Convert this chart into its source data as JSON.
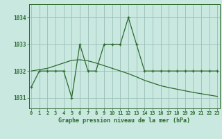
{
  "x": [
    0,
    1,
    2,
    3,
    4,
    5,
    6,
    7,
    8,
    9,
    10,
    11,
    12,
    13,
    14,
    15,
    16,
    17,
    18,
    19,
    20,
    21,
    22,
    23
  ],
  "y_main": [
    1031.4,
    1032.0,
    1032.0,
    1032.0,
    1032.0,
    1031.0,
    1033.0,
    1032.0,
    1032.0,
    1033.0,
    1033.0,
    1033.0,
    1034.0,
    1033.0,
    1032.0,
    1032.0,
    1032.0,
    1032.0,
    1032.0,
    1032.0,
    1032.0,
    1032.0,
    1032.0,
    1032.0
  ],
  "y_trend": [
    1032.0,
    1032.05,
    1032.1,
    1032.2,
    1032.3,
    1032.4,
    1032.42,
    1032.38,
    1032.3,
    1032.2,
    1032.1,
    1032.0,
    1031.9,
    1031.78,
    1031.65,
    1031.55,
    1031.45,
    1031.38,
    1031.32,
    1031.26,
    1031.2,
    1031.15,
    1031.1,
    1031.05
  ],
  "line_color": "#2d6a2d",
  "bg_color": "#c8e8e0",
  "grid_color": "#9abfb8",
  "xlabel_ticks": [
    "0",
    "1",
    "2",
    "3",
    "4",
    "5",
    "6",
    "7",
    "8",
    "9",
    "10",
    "11",
    "12",
    "13",
    "14",
    "15",
    "16",
    "17",
    "18",
    "19",
    "20",
    "21",
    "22",
    "23"
  ],
  "yticks": [
    1031,
    1032,
    1033,
    1034
  ],
  "ylim": [
    1030.6,
    1034.5
  ],
  "xlim": [
    -0.3,
    23.3
  ],
  "title": "Graphe pression niveau de la mer (hPa)"
}
